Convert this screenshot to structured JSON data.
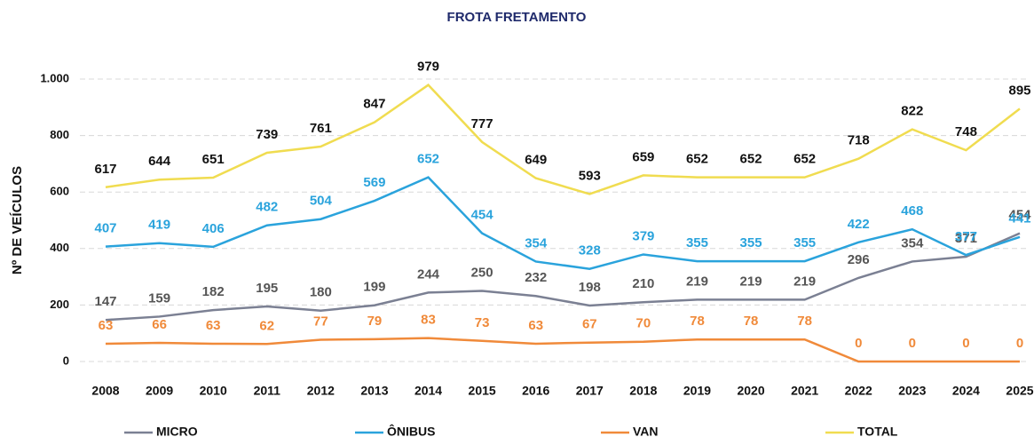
{
  "chart_data": {
    "type": "line",
    "title": "FROTA FRETAMENTO",
    "y_label": "Nº DE VEÍCULOS",
    "categories": [
      "2008",
      "2009",
      "2010",
      "2011",
      "2012",
      "2013",
      "2014",
      "2015",
      "2016",
      "2017",
      "2018",
      "2019",
      "2020",
      "2021",
      "2022",
      "2023",
      "2024",
      "2025"
    ],
    "series": [
      {
        "name": "MICRO",
        "color": "#7b8093",
        "values": [
          147,
          159,
          182,
          195,
          180,
          199,
          244,
          250,
          232,
          198,
          210,
          219,
          219,
          219,
          296,
          354,
          371,
          454
        ]
      },
      {
        "name": "ÔNIBUS",
        "color": "#2aa3dc",
        "values": [
          407,
          419,
          406,
          482,
          504,
          569,
          652,
          454,
          354,
          328,
          379,
          355,
          355,
          355,
          422,
          468,
          377,
          441
        ]
      },
      {
        "name": "VAN",
        "color": "#f08a3a",
        "values": [
          63,
          66,
          63,
          62,
          77,
          79,
          83,
          73,
          63,
          67,
          70,
          78,
          78,
          78,
          0,
          0,
          0,
          0
        ]
      },
      {
        "name": "TOTAL",
        "color": "#f0dc50",
        "values": [
          617,
          644,
          651,
          739,
          761,
          847,
          979,
          777,
          649,
          593,
          659,
          652,
          652,
          652,
          718,
          822,
          748,
          895
        ]
      }
    ],
    "ylim": [
      0,
      1000
    ],
    "yticks": [
      0,
      200,
      400,
      600,
      800,
      {
        "value": 1000,
        "label": "1.000"
      }
    ],
    "grid": true,
    "legend": "bottom"
  }
}
